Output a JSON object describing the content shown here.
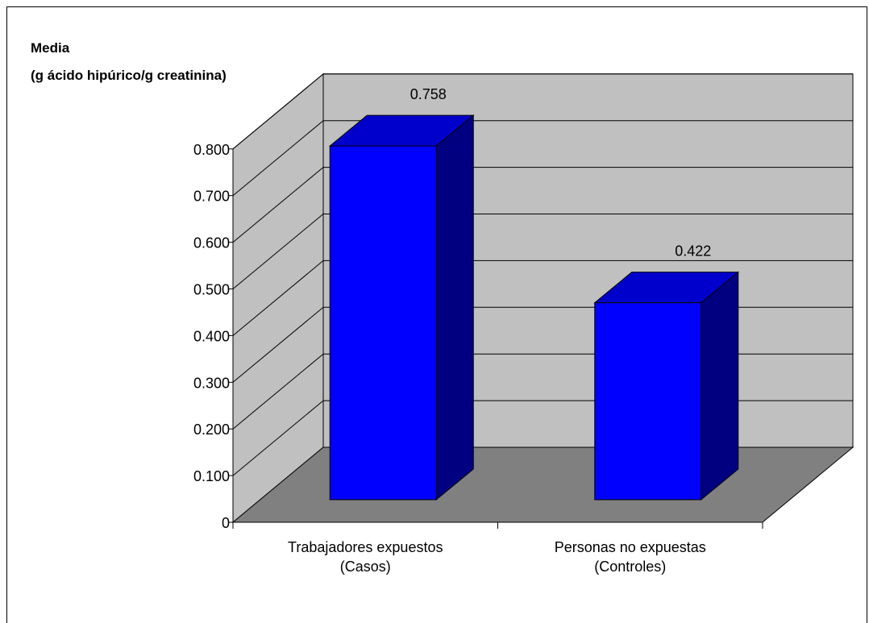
{
  "chart_data": {
    "type": "bar",
    "ylabel_line1": "Media",
    "ylabel_line2": "(g ácido hipúrico/g creatinina)",
    "ylim": [
      0,
      0.8
    ],
    "yticks": [
      "0",
      "0.100",
      "0.200",
      "0.300",
      "0.400",
      "0.500",
      "0.600",
      "0.700",
      "0.800"
    ],
    "categories": [
      {
        "line1": "Trabajadores expuestos",
        "line2": "(Casos)"
      },
      {
        "line1": "Personas no expuestas",
        "line2": "(Controles)"
      }
    ],
    "values": [
      0.758,
      0.422
    ],
    "data_labels": [
      "0.758",
      "0.422"
    ],
    "grid": true,
    "legend": "none",
    "three_d": true,
    "colors": {
      "bar_front": "#0000ff",
      "bar_side": "#000080",
      "bar_top": "#0000cc",
      "wall": "#c0c0c0",
      "floor": "#808080"
    }
  }
}
